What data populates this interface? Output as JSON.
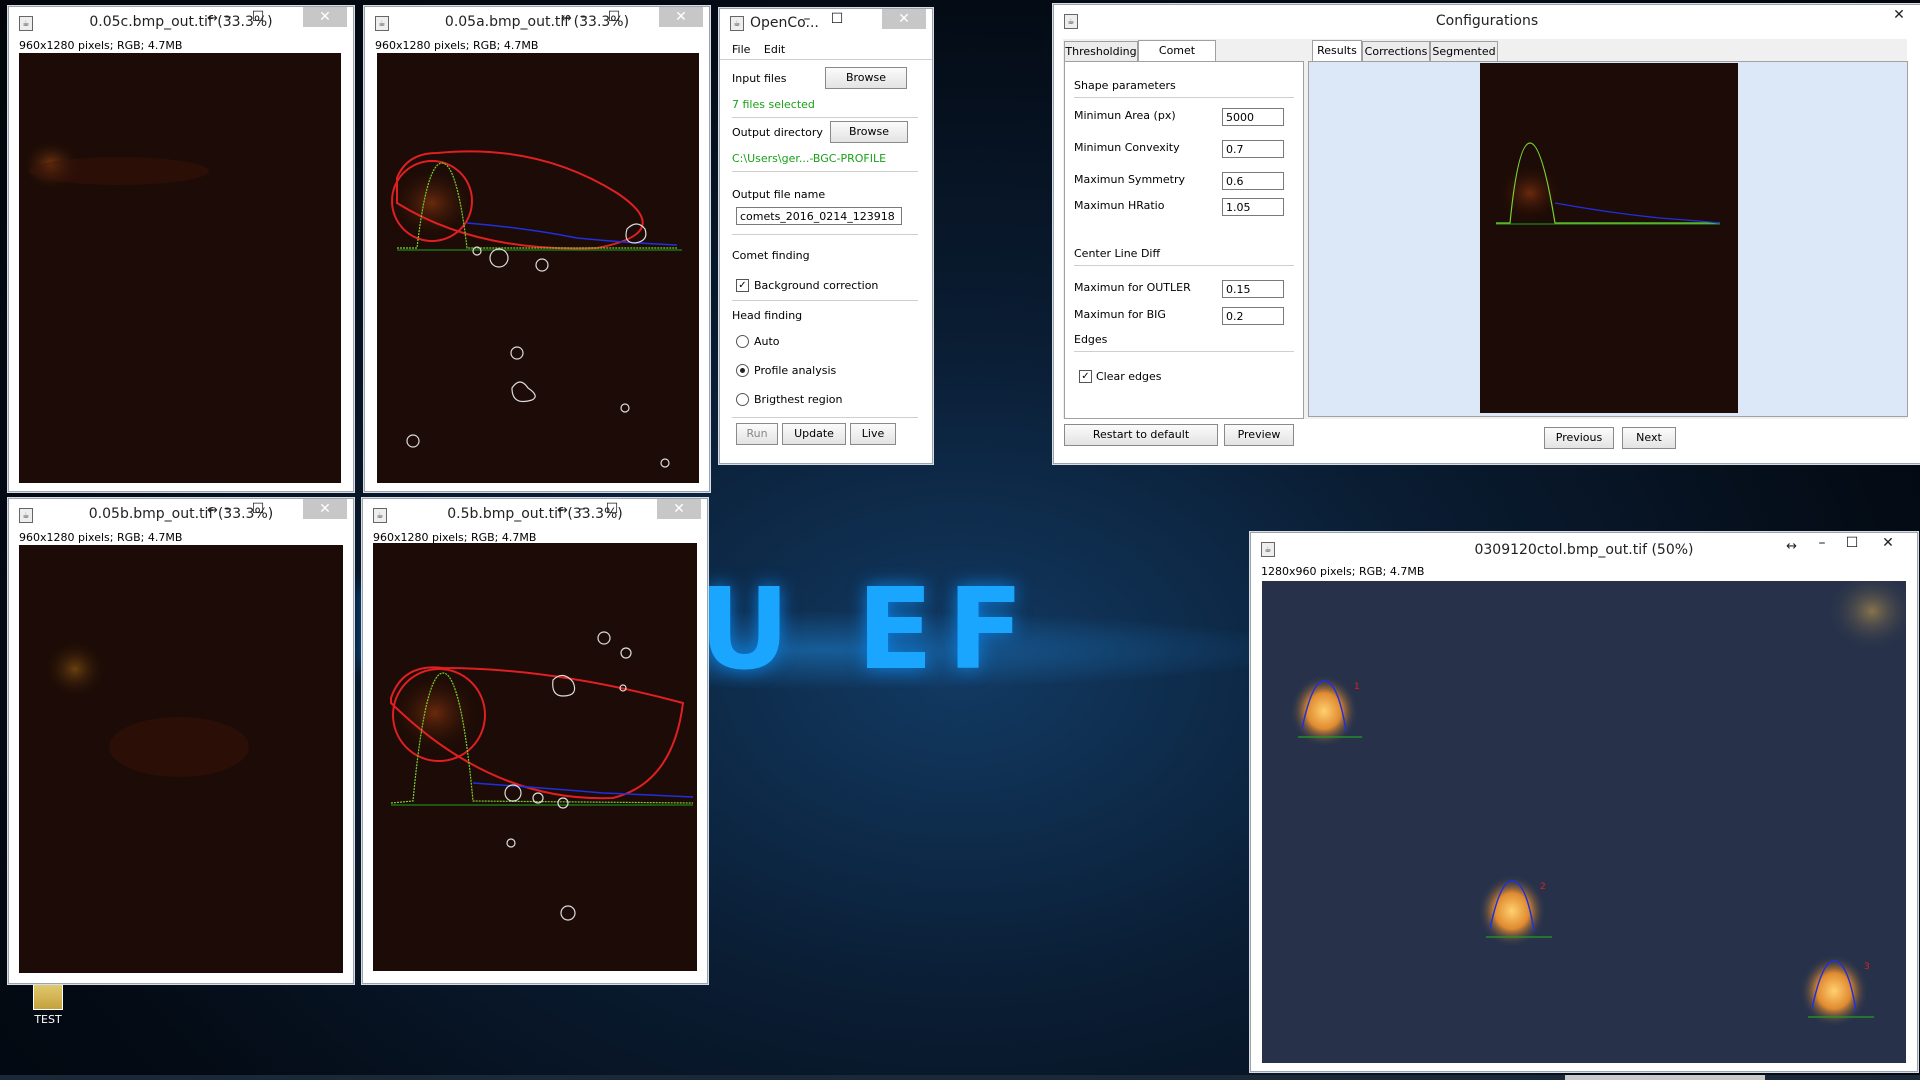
{
  "desktop": {
    "bg_text": "E YOU EF",
    "icon_label": "TEST"
  },
  "windows": [
    {
      "title": "0.05c.bmp_out.tif (33.3%)",
      "info": "960x1280 pixels; RGB; 4.7MB"
    },
    {
      "title": "0.05a.bmp_out.tif (33.3%)",
      "info": "960x1280 pixels; RGB; 4.7MB"
    },
    {
      "title": "0.05b.bmp_out.tif (33.3%)",
      "info": "960x1280 pixels; RGB; 4.7MB"
    },
    {
      "title": "0.5b.bmp_out.tif (33.3%)",
      "info": "960x1280 pixels; RGB; 4.7MB"
    },
    {
      "title": "0309120ctol.bmp_out.tif (50%)",
      "info": "1280x960 pixels; RGB; 4.7MB",
      "comet_labels": [
        "1",
        "2",
        "3"
      ]
    }
  ],
  "opencomet": {
    "title": "OpenCo...",
    "menu": [
      "File",
      "Edit"
    ],
    "input_files_label": "Input files",
    "browse_label": "Browse",
    "files_selected": "7 files selected",
    "output_dir_label": "Output directory",
    "output_dir_value": "C:\\Users\\ger...-BGC-PROFILE",
    "output_name_label": "Output file name",
    "output_name_value": "comets_2016_0214_123918",
    "comet_finding_label": "Comet finding",
    "background_correction": "Background correction",
    "head_finding_label": "Head finding",
    "head_options": [
      "Auto",
      "Profile analysis",
      "Brigthest region"
    ],
    "selected_head_option": "Profile analysis",
    "run_label": "Run",
    "update_label": "Update",
    "live_label": "Live"
  },
  "config": {
    "title": "Configurations",
    "tabs": [
      "Thresholding",
      "Comet Finding"
    ],
    "active_tab": "Comet Finding",
    "shape_params_label": "Shape parameters",
    "min_area_label": "Minimun Area (px)",
    "min_area_value": "5000",
    "min_convexity_label": "Minimun Convexity",
    "min_convexity_value": "0.7",
    "max_symmetry_label": "Maximun Symmetry",
    "max_symmetry_value": "0.6",
    "max_hratio_label": "Maximun HRatio",
    "max_hratio_value": "1.05",
    "center_line_label": "Center Line Diff",
    "max_outler_label": "Maximun for OUTLER",
    "max_outler_value": "0.15",
    "max_big_label": "Maximun for BIG",
    "max_big_value": "0.2",
    "edges_label": "Edges",
    "clear_edges_label": "Clear edges",
    "restart_label": "Restart to default",
    "preview_label": "Preview",
    "result_tabs": [
      "Results",
      "Corrections",
      "Segmented"
    ],
    "active_result_tab": "Results",
    "previous_label": "Previous",
    "next_label": "Next"
  }
}
